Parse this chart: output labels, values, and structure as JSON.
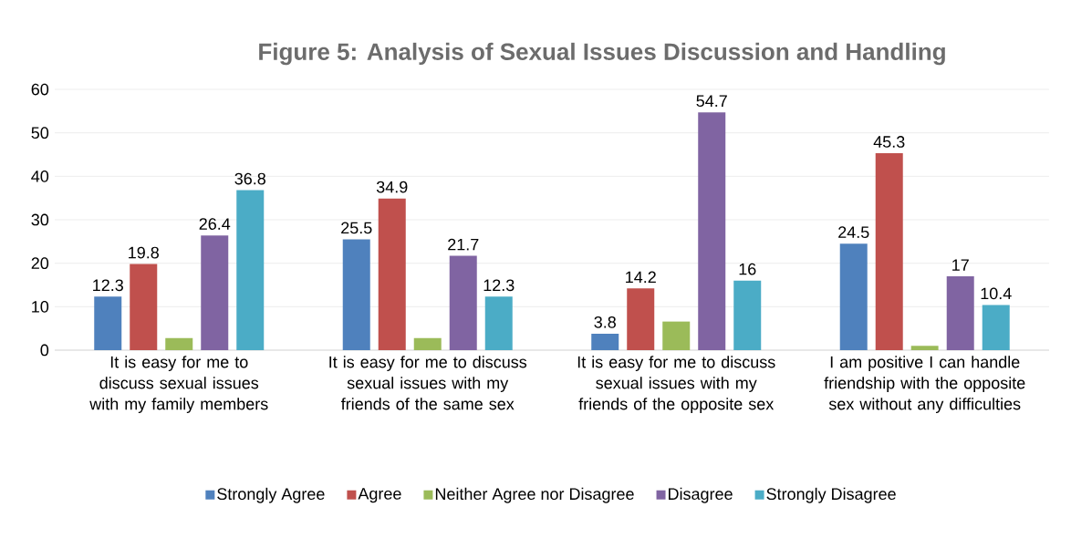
{
  "chart_data": {
    "type": "bar",
    "title": "Figure 5: Analysis of Sexual Issues Discussion and Handling",
    "categories": [
      "It is easy for me to discuss sexual issues with my family members",
      "It is easy for me to discuss sexual issues with my friends of the same sex",
      "It is easy for me to discuss sexual issues with my friends of the opposite sex",
      "I am positive I can handle friendship with the opposite sex without any difficulties"
    ],
    "series": [
      {
        "name": "Strongly Agree",
        "color": "#4f81bd",
        "values": [
          12.3,
          25.5,
          3.8,
          24.5
        ],
        "value_labels": [
          "12.3",
          "25.5",
          "3.8",
          "24.5"
        ]
      },
      {
        "name": "Agree",
        "color": "#c0504d",
        "values": [
          19.8,
          34.9,
          14.2,
          45.3
        ],
        "value_labels": [
          "19.8",
          "34.9",
          "14.2",
          "45.3"
        ]
      },
      {
        "name": "Neither Agree nor Disagree",
        "color": "#9bbb59",
        "values": [
          2.8,
          2.8,
          6.6,
          1.0
        ],
        "value_labels": [
          null,
          null,
          null,
          null
        ]
      },
      {
        "name": "Disagree",
        "color": "#8064a2",
        "values": [
          26.4,
          21.7,
          54.7,
          17
        ],
        "value_labels": [
          "26.4",
          "21.7",
          "54.7",
          "17"
        ]
      },
      {
        "name": "Strongly Disagree",
        "color": "#4bacc6",
        "values": [
          36.8,
          12.3,
          16,
          10.4
        ],
        "value_labels": [
          "36.8",
          "12.3",
          "16",
          "10.4"
        ]
      }
    ],
    "ylim": [
      0,
      60
    ],
    "yticks": [
      0,
      10,
      20,
      30,
      40,
      50,
      60
    ],
    "grid": "y",
    "legend": "bottom"
  }
}
